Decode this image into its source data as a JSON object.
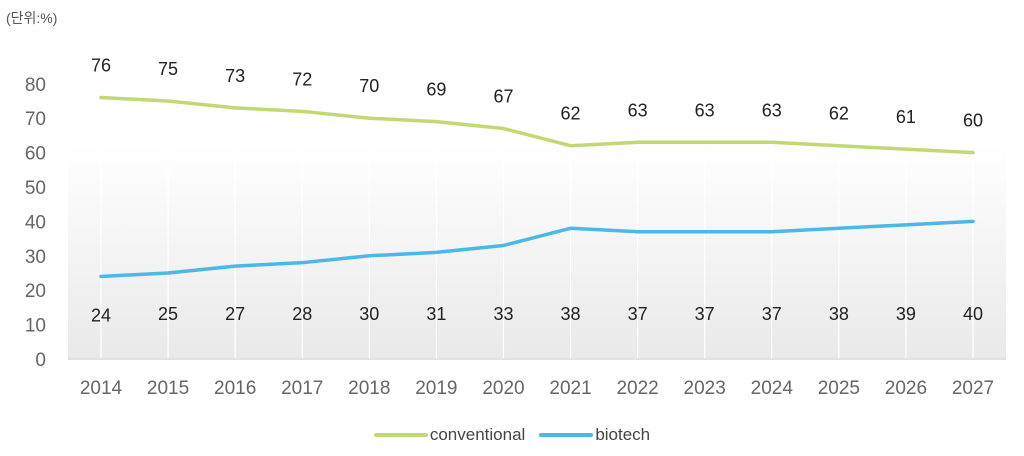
{
  "unit_label": "(단위:%)",
  "chart_data": {
    "type": "line",
    "categories": [
      "2014",
      "2015",
      "2016",
      "2017",
      "2018",
      "2019",
      "2020",
      "2021",
      "2022",
      "2023",
      "2024",
      "2025",
      "2026",
      "2027"
    ],
    "ylim": [
      0,
      85
    ],
    "yticks": [
      0,
      10,
      20,
      30,
      40,
      50,
      60,
      70,
      80
    ],
    "series": [
      {
        "name": "conventional",
        "color": "#c2d873",
        "values": [
          76,
          75,
          73,
          72,
          70,
          69,
          67,
          62,
          63,
          63,
          63,
          62,
          61,
          60
        ]
      },
      {
        "name": "biotech",
        "color": "#4bb8e6",
        "values": [
          24,
          25,
          27,
          28,
          30,
          31,
          33,
          38,
          37,
          37,
          37,
          38,
          39,
          40
        ]
      }
    ]
  }
}
